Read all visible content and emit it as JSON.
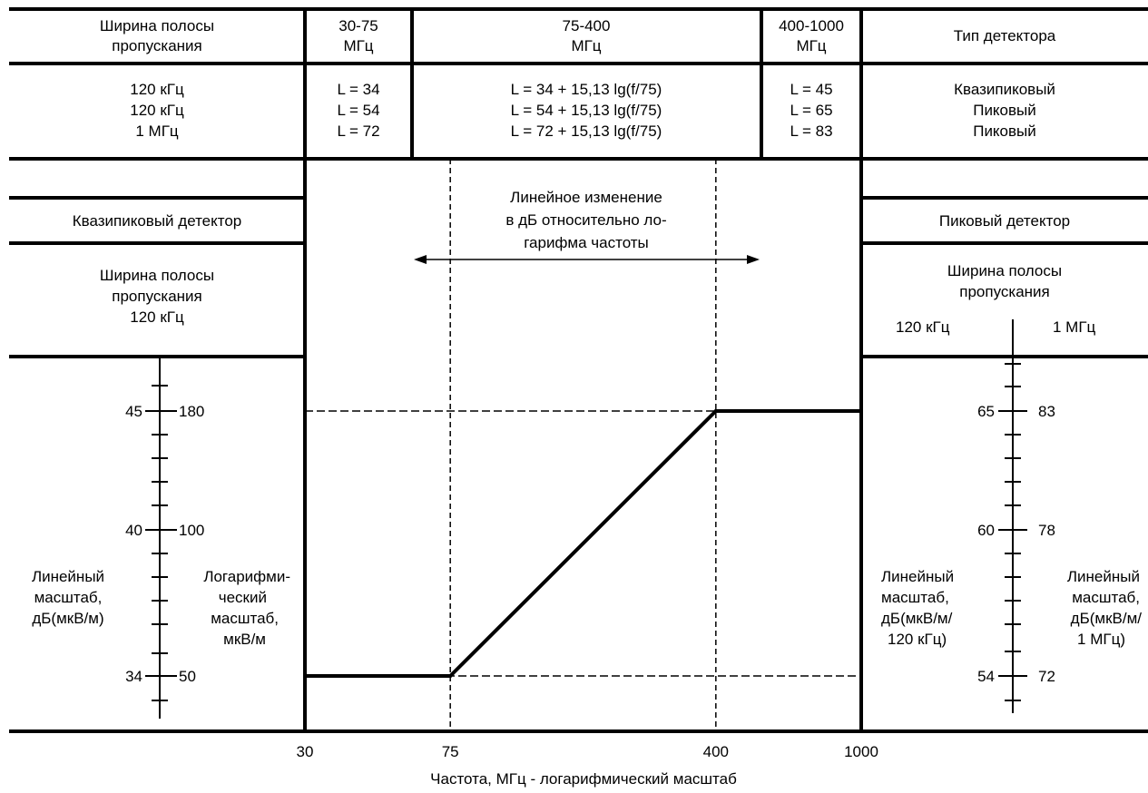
{
  "header": {
    "bandwidth_label": [
      "Ширина полосы",
      "пропускания"
    ],
    "band1": [
      "30-75",
      "МГц"
    ],
    "band2": [
      "75-400",
      "МГц"
    ],
    "band3": [
      "400-1000",
      "МГц"
    ],
    "detector_type_label": "Тип детектора"
  },
  "limits_row": {
    "bandwidths": [
      "120 кГц",
      "120 кГц",
      "1 МГц"
    ],
    "band1_formulas": [
      "L = 34",
      "L = 54",
      "L = 72"
    ],
    "band2_formulas": [
      "L = 34 + 15,13 lg(f/75)",
      "L = 54 + 15,13 lg(f/75)",
      "L = 72 + 15,13 lg(f/75)"
    ],
    "band3_formulas": [
      "L = 45",
      "L = 65",
      "L = 83"
    ],
    "detector_types": [
      "Квазипиковый",
      "Пиковый",
      "Пиковый"
    ]
  },
  "left_panel": {
    "detector_label": "Квазипиковый детектор",
    "bandwidth_label": [
      "Ширина полосы",
      "пропускания",
      "120 кГц"
    ],
    "linear_scale_label": [
      "Линейный",
      "масштаб,",
      "дБ(мкВ/м)"
    ],
    "log_scale_label": [
      "Логарифми-",
      "ческий",
      "масштаб,",
      "мкВ/м"
    ],
    "scale_marks": [
      {
        "db": "45",
        "uv": "180"
      },
      {
        "db": "40",
        "uv": "100"
      },
      {
        "db": "34",
        "uv": "50"
      }
    ]
  },
  "right_panel": {
    "detector_label": "Пиковый детектор",
    "bandwidth_label": [
      "Ширина полосы",
      "пропускания"
    ],
    "col_left_label": "120 кГц",
    "col_right_label": "1 МГц",
    "left_scale_label": [
      "Линейный",
      "масштаб,",
      "дБ(мкВ/м/",
      "120 кГц)"
    ],
    "right_scale_label": [
      "Линейный",
      "масштаб,",
      "дБ(мкВ/м/",
      "1 МГц)"
    ],
    "scale_marks": [
      {
        "left": "65",
        "right": "83"
      },
      {
        "left": "60",
        "right": "78"
      },
      {
        "left": "54",
        "right": "72"
      }
    ]
  },
  "center": {
    "annotation": [
      "Линейное изменение",
      "в дБ относительно ло-",
      "гарифма частоты"
    ]
  },
  "x_axis": {
    "ticks": [
      "30",
      "75",
      "400",
      "1000"
    ],
    "label": "Частота, МГц - логарифмический масштаб"
  },
  "chart_data": {
    "type": "line",
    "title": "",
    "xlabel": "Частота, МГц - логарифмический масштаб",
    "ylabel": "Линейный масштаб, дБ(мкВ/м)",
    "x_scale": "log",
    "xlim": [
      30,
      1000
    ],
    "ylim": [
      33,
      46.5
    ],
    "series": [
      {
        "x": [
          30,
          75,
          400,
          1000
        ],
        "y": [
          34,
          34,
          45,
          45
        ]
      }
    ],
    "reference_lines": {
      "x": [
        75,
        400
      ],
      "y": [
        34,
        45
      ]
    }
  }
}
